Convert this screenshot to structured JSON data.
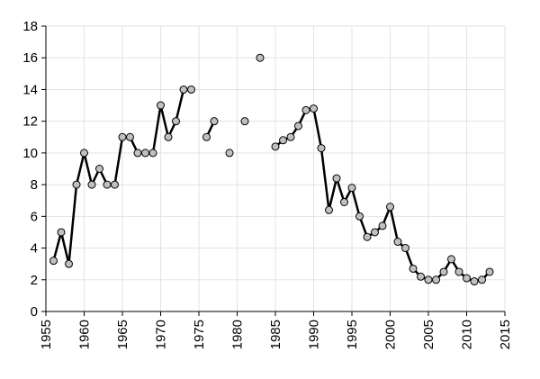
{
  "chart_data": {
    "type": "line",
    "x": [
      1956,
      1957,
      1958,
      1959,
      1960,
      1961,
      1962,
      1963,
      1964,
      1965,
      1966,
      1967,
      1968,
      1969,
      1970,
      1971,
      1972,
      1973,
      1974,
      1975,
      1976,
      1977,
      1978,
      1979,
      1980,
      1981,
      1982,
      1983,
      1984,
      1985,
      1986,
      1987,
      1988,
      1989,
      1990,
      1991,
      1992,
      1993,
      1994,
      1995,
      1996,
      1997,
      1998,
      1999,
      2000,
      2001,
      2002,
      2003,
      2004,
      2005,
      2006,
      2007,
      2008,
      2009,
      2010,
      2011,
      2012,
      2013
    ],
    "series": [
      {
        "color": "#000000",
        "marker_color": "#c0c0c0",
        "values": [
          3.2,
          5.0,
          3.0,
          8,
          10,
          8,
          9,
          8,
          8,
          11,
          11,
          10,
          10,
          10,
          13,
          11,
          12,
          14,
          14,
          null,
          11,
          12,
          null,
          10,
          null,
          12,
          null,
          16,
          null,
          10.4,
          10.8,
          11,
          11.7,
          12.7,
          12.8,
          10.3,
          6.4,
          8.4,
          6.9,
          7.8,
          6.0,
          4.7,
          5.0,
          5.4,
          6.6,
          4.4,
          4.0,
          2.7,
          2.2,
          2.0,
          2.0,
          2.5,
          3.3,
          2.5,
          2.1,
          1.9,
          2.0,
          2.5
        ]
      }
    ],
    "xlim": [
      1955,
      2015
    ],
    "xticks": [
      1955,
      1960,
      1965,
      1970,
      1975,
      1980,
      1985,
      1990,
      1995,
      2000,
      2005,
      2010,
      2015
    ],
    "ylim": [
      0,
      18
    ],
    "yticks": [
      0,
      2,
      4,
      6,
      8,
      10,
      12,
      14,
      16,
      18
    ],
    "grid": true
  }
}
